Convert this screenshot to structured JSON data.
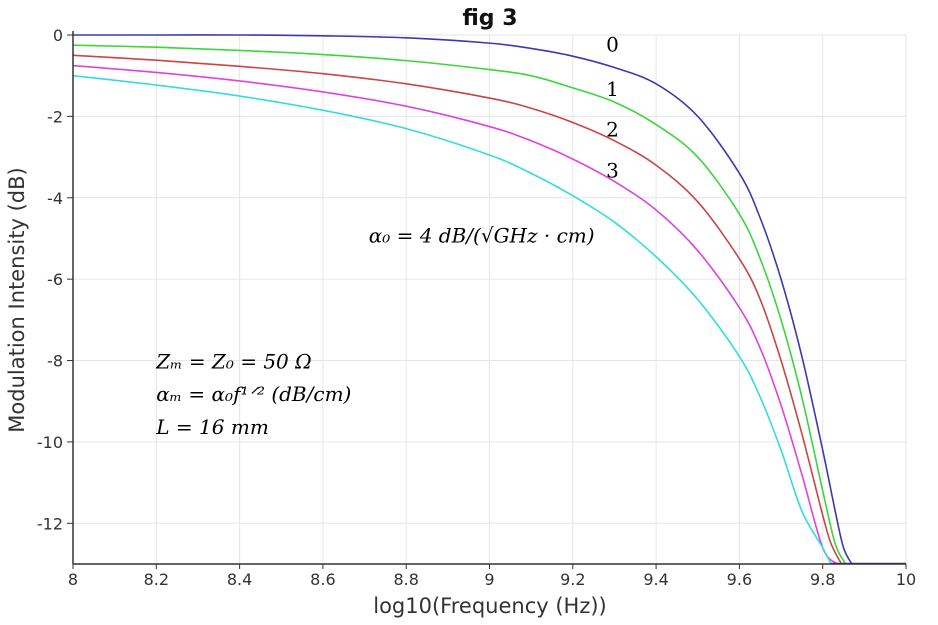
{
  "chart_data": {
    "type": "line",
    "title": "fig 3",
    "xlabel": "log10(Frequency (Hz))",
    "ylabel": "Modulation Intensity (dB)",
    "xlim": [
      8,
      10
    ],
    "ylim": [
      -13,
      0
    ],
    "x_ticks": [
      "8",
      "8.2",
      "8.4",
      "8.6",
      "8.8",
      "9",
      "9.2",
      "9.4",
      "9.6",
      "9.8",
      "10"
    ],
    "y_ticks": [
      "0",
      "-2",
      "-4",
      "-6",
      "-8",
      "-10",
      "-12"
    ],
    "grid": true,
    "series": [
      {
        "label": "0",
        "color": "#3a3ab0",
        "x": [
          8.0,
          8.2,
          8.4,
          8.6,
          8.8,
          9.0,
          9.1,
          9.2,
          9.3,
          9.4,
          9.5,
          9.6,
          9.65,
          9.7,
          9.75,
          9.8,
          9.83,
          9.85,
          9.87
        ],
        "y": [
          0.0,
          0.0,
          0.0,
          -0.02,
          -0.07,
          -0.2,
          -0.33,
          -0.52,
          -0.8,
          -1.2,
          -2.0,
          -3.4,
          -4.5,
          -6.0,
          -7.9,
          -10.2,
          -11.7,
          -12.6,
          -13.0
        ]
      },
      {
        "label": "1",
        "color": "#3cd63c",
        "x": [
          8.0,
          8.2,
          8.4,
          8.6,
          8.8,
          9.0,
          9.1,
          9.2,
          9.3,
          9.4,
          9.5,
          9.6,
          9.65,
          9.7,
          9.75,
          9.8,
          9.83,
          9.855
        ],
        "y": [
          -0.25,
          -0.3,
          -0.38,
          -0.48,
          -0.63,
          -0.85,
          -1.0,
          -1.3,
          -1.65,
          -2.2,
          -3.0,
          -4.4,
          -5.5,
          -7.0,
          -8.9,
          -11.2,
          -12.5,
          -13.0
        ]
      },
      {
        "label": "2",
        "color": "#cc4444",
        "x": [
          8.0,
          8.2,
          8.4,
          8.6,
          8.8,
          9.0,
          9.1,
          9.2,
          9.3,
          9.4,
          9.5,
          9.6,
          9.65,
          9.7,
          9.75,
          9.8,
          9.82,
          9.845
        ],
        "y": [
          -0.5,
          -0.62,
          -0.77,
          -0.95,
          -1.2,
          -1.55,
          -1.8,
          -2.15,
          -2.6,
          -3.2,
          -4.1,
          -5.5,
          -6.5,
          -8.0,
          -9.8,
          -11.8,
          -12.5,
          -13.0
        ]
      },
      {
        "label": "3",
        "color": "#dd44dd",
        "x": [
          8.0,
          8.2,
          8.4,
          8.6,
          8.8,
          9.0,
          9.1,
          9.2,
          9.3,
          9.4,
          9.5,
          9.6,
          9.65,
          9.7,
          9.75,
          9.8,
          9.835
        ],
        "y": [
          -0.75,
          -0.92,
          -1.13,
          -1.4,
          -1.75,
          -2.25,
          -2.6,
          -3.05,
          -3.6,
          -4.3,
          -5.3,
          -6.7,
          -7.7,
          -9.1,
          -10.8,
          -12.6,
          -13.0
        ]
      },
      {
        "label": "",
        "color": "#33dddd",
        "x": [
          8.0,
          8.2,
          8.4,
          8.6,
          8.8,
          9.0,
          9.1,
          9.2,
          9.3,
          9.4,
          9.5,
          9.6,
          9.65,
          9.7,
          9.75,
          9.8,
          9.82
        ],
        "y": [
          -1.0,
          -1.23,
          -1.5,
          -1.85,
          -2.3,
          -2.95,
          -3.4,
          -3.95,
          -4.6,
          -5.45,
          -6.5,
          -7.9,
          -8.9,
          -10.2,
          -11.7,
          -12.6,
          -13.0
        ]
      }
    ],
    "curve_labels": [
      {
        "text": "0",
        "x": 9.28,
        "y": -0.4
      },
      {
        "text": "1",
        "x": 9.28,
        "y": -1.5
      },
      {
        "text": "2",
        "x": 9.28,
        "y": -2.5
      },
      {
        "text": "3",
        "x": 9.28,
        "y": -3.5
      }
    ],
    "annotations": [
      {
        "text": "α₀ = 4 dB/(√GHz · cm)",
        "x": 8.71,
        "y": -5.1
      },
      {
        "text": "Zₘ = Z₀ = 50 Ω",
        "x": 8.2,
        "y": -8.2
      },
      {
        "text": "αₘ = α₀f¹ᐟ² (dB/cm)",
        "x": 8.2,
        "y": -9.0
      },
      {
        "text": "L = 16 mm",
        "x": 8.2,
        "y": -9.8
      }
    ]
  }
}
